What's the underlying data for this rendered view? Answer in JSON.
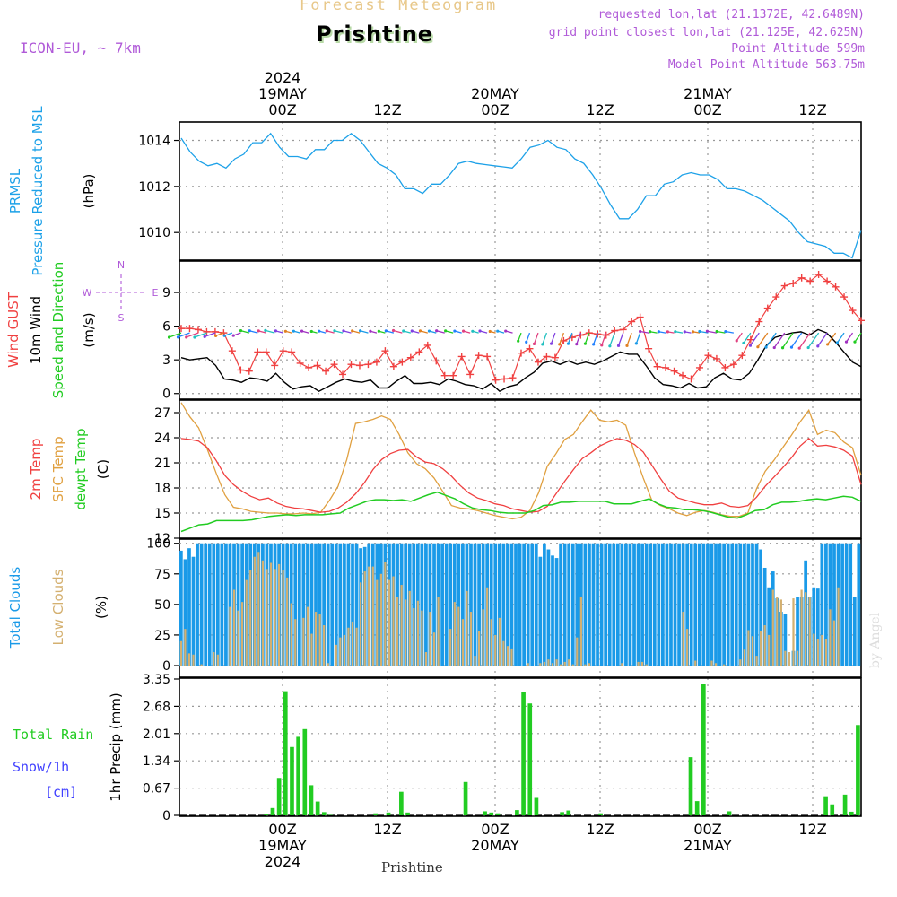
{
  "header": {
    "title": "Forecast Meteogram",
    "city": "Prishtine",
    "model": "ICON-EU, ~ 7km",
    "requested": "requested lon,lat (21.1372E, 42.6489N)",
    "grid": "grid point closest lon,lat (21.125E, 42.625N)",
    "point_alt": "Point Altitude 599m",
    "model_alt": "Model Point Altitude 563.75m",
    "bottom_name": "Prishtine",
    "watermark": "by Angel"
  },
  "colors": {
    "pressure": "#1da1e8",
    "gust": "#f04040",
    "wind": "#000000",
    "t2m": "#f04040",
    "sfc": "#e0a040",
    "dewpt": "#22cc22",
    "total_clouds": "#1a9ae8",
    "low_clouds": "#d4b070",
    "rain": "#22cc22",
    "snow": "#4040ff",
    "purple": "#b05ad8"
  },
  "chart_data": [
    {
      "id": "pressure",
      "type": "line",
      "ylabel_lines": [
        "PRMSL",
        "Pressure Reduced to MSL"
      ],
      "unit": "(hPa)",
      "ylim": [
        1008.8,
        1014.8
      ],
      "yticks": [
        1010,
        1012,
        1014
      ],
      "series": [
        {
          "name": "PRMSL",
          "values": [
            1014.1,
            1013.5,
            1013.1,
            1012.9,
            1013.0,
            1012.8,
            1013.2,
            1013.4,
            1013.9,
            1013.9,
            1014.3,
            1013.7,
            1013.3,
            1013.3,
            1013.2,
            1013.6,
            1013.6,
            1014.0,
            1014.0,
            1014.3,
            1014.0,
            1013.5,
            1013.0,
            1012.8,
            1012.5,
            1011.9,
            1011.9,
            1011.7,
            1012.1,
            1012.1,
            1012.5,
            1013.0,
            1013.1,
            1013.0,
            1012.95,
            1012.9,
            1012.85,
            1012.8,
            1013.2,
            1013.7,
            1013.8,
            1014.0,
            1013.7,
            1013.6,
            1013.2,
            1013.0,
            1012.5,
            1011.9,
            1011.2,
            1010.6,
            1010.6,
            1011.0,
            1011.6,
            1011.6,
            1012.1,
            1012.2,
            1012.5,
            1012.6,
            1012.5,
            1012.5,
            1012.3,
            1011.9,
            1011.9,
            1011.8,
            1011.6,
            1011.4,
            1011.1,
            1010.8,
            1010.5,
            1010.0,
            1009.6,
            1009.5,
            1009.4,
            1009.1,
            1009.1,
            1008.9,
            1010.1
          ]
        }
      ]
    },
    {
      "id": "wind",
      "type": "line",
      "ylabel_lines": [
        "Wind GUST",
        "10m Wind",
        "Speed and Direction"
      ],
      "unit": "(m/s)",
      "ylim": [
        -0.5,
        11.8
      ],
      "yticks": [
        0,
        3,
        6,
        9
      ],
      "compass": {
        "n": "N",
        "s": "S",
        "w": "W",
        "e": "E"
      },
      "series": [
        {
          "name": "Wind GUST",
          "values": [
            5.8,
            5.8,
            5.7,
            5.5,
            5.5,
            5.4,
            3.8,
            2.1,
            2.0,
            3.7,
            3.7,
            2.5,
            3.8,
            3.7,
            2.7,
            2.3,
            2.5,
            2.0,
            2.6,
            1.7,
            2.6,
            2.5,
            2.6,
            2.8,
            3.8,
            2.4,
            2.8,
            3.2,
            3.7,
            4.3,
            2.9,
            1.6,
            1.6,
            3.3,
            1.7,
            3.4,
            3.3,
            1.2,
            1.3,
            1.4,
            3.6,
            4.0,
            2.8,
            3.3,
            3.2,
            4.7,
            5.0,
            5.2,
            5.4,
            5.3,
            5.2,
            5.6,
            5.7,
            6.4,
            6.8,
            4.0,
            2.4,
            2.3,
            2.0,
            1.6,
            1.3,
            2.3,
            3.4,
            3.1,
            2.3,
            2.6,
            3.4,
            4.8,
            6.4,
            7.6,
            8.6,
            9.6,
            9.8,
            10.3,
            10.0,
            10.6,
            10.0,
            9.5,
            8.6,
            7.4,
            6.5
          ]
        },
        {
          "name": "10m Wind",
          "values": [
            3.2,
            3.0,
            3.1,
            3.2,
            2.5,
            1.3,
            1.2,
            1.0,
            1.4,
            1.3,
            1.1,
            1.8,
            1.0,
            0.4,
            0.6,
            0.7,
            0.2,
            0.6,
            1.0,
            1.3,
            1.1,
            1.0,
            1.2,
            0.5,
            0.5,
            1.1,
            1.6,
            0.9,
            0.9,
            1.0,
            0.8,
            1.3,
            1.1,
            0.8,
            0.7,
            0.4,
            0.9,
            0.2,
            0.6,
            0.8,
            1.4,
            1.9,
            2.7,
            2.9,
            2.6,
            2.9,
            2.6,
            2.8,
            2.6,
            2.9,
            3.3,
            3.7,
            3.5,
            3.5,
            2.5,
            1.4,
            0.8,
            0.7,
            0.5,
            0.9,
            0.5,
            0.6,
            1.4,
            1.8,
            1.3,
            1.2,
            1.8,
            3.0,
            4.3,
            5.0,
            5.2,
            5.4,
            5.5,
            5.2,
            5.7,
            5.4,
            4.6,
            3.7,
            2.8,
            2.4
          ]
        }
      ]
    },
    {
      "id": "temperature",
      "type": "line",
      "ylabel_lines": [
        "2m Temp",
        "SFC Temp",
        "dewpt Temp"
      ],
      "unit": "(C)",
      "ylim": [
        12,
        28.5
      ],
      "yticks": [
        12,
        15,
        18,
        21,
        24,
        27
      ],
      "series": [
        {
          "name": "2m Temp",
          "values": [
            23.9,
            23.8,
            23.6,
            22.8,
            21.3,
            19.5,
            18.4,
            17.6,
            17.0,
            16.6,
            16.8,
            16.2,
            15.8,
            15.6,
            15.5,
            15.3,
            15.1,
            15.2,
            15.6,
            16.3,
            17.3,
            18.6,
            20.2,
            21.4,
            22.1,
            22.5,
            22.6,
            21.7,
            21.1,
            20.9,
            20.3,
            19.4,
            18.3,
            17.4,
            16.8,
            16.5,
            16.1,
            15.9,
            15.5,
            15.3,
            15.1,
            15.2,
            15.8,
            17.3,
            18.8,
            20.2,
            21.5,
            22.2,
            23.0,
            23.5,
            23.9,
            23.7,
            23.2,
            22.3,
            20.7,
            19.1,
            17.6,
            16.8,
            16.5,
            16.2,
            16.0,
            16.0,
            16.2,
            15.8,
            15.7,
            15.9,
            16.9,
            18.2,
            19.3,
            20.4,
            21.6,
            23.0,
            23.9,
            23.0,
            23.1,
            22.9,
            22.5,
            21.8,
            18.4
          ]
        },
        {
          "name": "SFC Temp",
          "values": [
            28.2,
            26.5,
            25.2,
            22.6,
            19.8,
            17.2,
            15.7,
            15.5,
            15.2,
            15.1,
            15.0,
            15.0,
            14.9,
            14.9,
            15.0,
            14.9,
            15.1,
            16.5,
            18.2,
            21.4,
            25.7,
            25.9,
            26.2,
            26.6,
            26.2,
            24.4,
            22.2,
            20.9,
            20.3,
            19.2,
            17.6,
            15.9,
            15.6,
            15.5,
            15.3,
            15.0,
            14.7,
            14.5,
            14.3,
            14.5,
            15.3,
            17.4,
            20.6,
            22.1,
            23.8,
            24.4,
            25.9,
            27.3,
            26.1,
            25.9,
            26.1,
            25.5,
            22.2,
            19.2,
            16.5,
            15.9,
            15.5,
            15.0,
            14.7,
            15.1,
            15.3,
            15.1,
            14.8,
            14.6,
            14.6,
            15.0,
            17.9,
            20.0,
            21.3,
            22.8,
            24.3,
            25.9,
            27.3,
            24.4,
            24.9,
            24.6,
            23.5,
            22.8,
            19.5
          ]
        },
        {
          "name": "dewpt Temp",
          "values": [
            12.8,
            13.2,
            13.6,
            13.7,
            14.1,
            14.1,
            14.1,
            14.1,
            14.2,
            14.4,
            14.6,
            14.7,
            14.8,
            14.7,
            14.8,
            14.8,
            14.8,
            14.9,
            15.0,
            15.6,
            16.0,
            16.4,
            16.6,
            16.6,
            16.5,
            16.6,
            16.4,
            16.8,
            17.2,
            17.5,
            17.1,
            16.7,
            16.1,
            15.6,
            15.4,
            15.3,
            15.1,
            15.0,
            15.0,
            15.0,
            15.3,
            15.9,
            16.0,
            16.3,
            16.3,
            16.4,
            16.4,
            16.4,
            16.4,
            16.1,
            16.1,
            16.1,
            16.4,
            16.7,
            16.1,
            15.7,
            15.6,
            15.4,
            15.4,
            15.3,
            15.1,
            14.8,
            14.5,
            14.4,
            14.8,
            15.3,
            15.4,
            16.0,
            16.3,
            16.3,
            16.4,
            16.6,
            16.7,
            16.6,
            16.8,
            17.0,
            16.9,
            16.4
          ]
        }
      ]
    },
    {
      "id": "clouds",
      "type": "bar",
      "ylabel_left": "Total Clouds",
      "ylabel_right": "Low Clouds",
      "unit": "(%)",
      "ylim": [
        0,
        102
      ],
      "yticks": [
        0,
        25,
        50,
        75,
        100
      ],
      "series": [
        {
          "name": "Total Clouds",
          "values": [
            94,
            87,
            96,
            89,
            100,
            100,
            100,
            100,
            100,
            100,
            100,
            100,
            100,
            100,
            100,
            100,
            100,
            100,
            100,
            100,
            100,
            100,
            100,
            100,
            100,
            100,
            100,
            100,
            100,
            100,
            100,
            100,
            100,
            100,
            100,
            100,
            100,
            100,
            100,
            100,
            100,
            100,
            100,
            100,
            96,
            97,
            100,
            100,
            100,
            100,
            100,
            100,
            100,
            100,
            100,
            100,
            100,
            100,
            100,
            100,
            100,
            100,
            100,
            100,
            100,
            100,
            100,
            100,
            100,
            100,
            100,
            100,
            100,
            100,
            100,
            100,
            100,
            100,
            100,
            100,
            100,
            100,
            100,
            100,
            100,
            100,
            100,
            100,
            89,
            100,
            95,
            90,
            88,
            100,
            100,
            100,
            100,
            100,
            100,
            100,
            100,
            100,
            100,
            100,
            100,
            100,
            100,
            100,
            100,
            100,
            100,
            100,
            100,
            100,
            100,
            100,
            100,
            100,
            100,
            100,
            100,
            100,
            100,
            100,
            100,
            100,
            100,
            100,
            100,
            100,
            100,
            100,
            100,
            100,
            100,
            100,
            100,
            100,
            100,
            100,
            100,
            100,
            95,
            80,
            64,
            77,
            55,
            44,
            42,
            0,
            12,
            56,
            56,
            86,
            56,
            64,
            63,
            100,
            100,
            100,
            100,
            100,
            100,
            100,
            100,
            56,
            100
          ]
        },
        {
          "name": "Low Clouds",
          "values": [
            20,
            30,
            10,
            9,
            0,
            1,
            0,
            0,
            11,
            9,
            0,
            0,
            48,
            62,
            45,
            52,
            70,
            78,
            89,
            93,
            86,
            79,
            84,
            79,
            83,
            78,
            72,
            51,
            38,
            0,
            39,
            48,
            26,
            44,
            42,
            33,
            2,
            0,
            17,
            23,
            25,
            31,
            36,
            31,
            68,
            77,
            81,
            81,
            70,
            75,
            85,
            70,
            73,
            56,
            66,
            54,
            61,
            47,
            53,
            45,
            11,
            44,
            27,
            56,
            0,
            0,
            30,
            52,
            48,
            38,
            61,
            44,
            8,
            28,
            46,
            64,
            38,
            25,
            39,
            20,
            16,
            14,
            0,
            0,
            0,
            2,
            0,
            0,
            2,
            3,
            5,
            2,
            5,
            1,
            3,
            5,
            1,
            23,
            56,
            1,
            2,
            0,
            0,
            0,
            0,
            0,
            0,
            0,
            2,
            0,
            0,
            0,
            3,
            3,
            1,
            0,
            0,
            0,
            0,
            0,
            0,
            0,
            0,
            44,
            30,
            0,
            4,
            0,
            0,
            0,
            4,
            2,
            0,
            1,
            0,
            0,
            0,
            5,
            13,
            29,
            24,
            8,
            28,
            33,
            25,
            62,
            56,
            54,
            12,
            11,
            55,
            12,
            62,
            60,
            56,
            26,
            22,
            25,
            22,
            46,
            37,
            64
          ]
        }
      ]
    },
    {
      "id": "precip",
      "type": "bar",
      "ylabel_lines": [
        "Total   Rain",
        "Snow/1h",
        "[cm]"
      ],
      "unit": "1hr Precip (mm)",
      "ylim": [
        0,
        3.35
      ],
      "yticks": [
        "0",
        "0.67",
        "1.34",
        "2.01",
        "2.68",
        "3.35"
      ],
      "series": [
        {
          "name": "Total Rain",
          "values": [
            0,
            0,
            0,
            0,
            0,
            0,
            0,
            0,
            0,
            0,
            0,
            0,
            0,
            0.03,
            0.18,
            0.92,
            3.05,
            1.68,
            1.93,
            2.12,
            0.74,
            0.34,
            0.08,
            0.01,
            0,
            0,
            0,
            0,
            0,
            0,
            0.05,
            0,
            0.07,
            0,
            0.58,
            0.07,
            0,
            0,
            0,
            0,
            0,
            0,
            0,
            0,
            0.82,
            0,
            0,
            0.1,
            0.07,
            0.05,
            0,
            0,
            0.13,
            3.02,
            2.75,
            0.43,
            0,
            0,
            0,
            0.08,
            0.12,
            0,
            0,
            0,
            0,
            0.05,
            0,
            0,
            0,
            0,
            0,
            0,
            0,
            0,
            0,
            0,
            0,
            0,
            0,
            1.43,
            0.35,
            3.22,
            0,
            0,
            0,
            0.1,
            0,
            0,
            0,
            0,
            0,
            0,
            0,
            0,
            0,
            0,
            0,
            0,
            0,
            0,
            0.47,
            0.27,
            0,
            0.51,
            0.09,
            2.22
          ]
        }
      ]
    }
  ],
  "time_axis": {
    "top_labels": [
      {
        "line1": "2024",
        "line2": "19MAY",
        "line3": "00Z"
      },
      {
        "line1": "",
        "line2": "",
        "line3": "12Z"
      },
      {
        "line1": "",
        "line2": "20MAY",
        "line3": "00Z"
      },
      {
        "line1": "",
        "line2": "",
        "line3": "12Z"
      },
      {
        "line1": "",
        "line2": "21MAY",
        "line3": "00Z"
      },
      {
        "line1": "",
        "line2": "",
        "line3": "12Z"
      }
    ],
    "bottom_labels": [
      {
        "line1": "00Z",
        "line2": "19MAY",
        "line3": "2024"
      },
      {
        "line1": "12Z",
        "line2": "",
        "line3": ""
      },
      {
        "line1": "00Z",
        "line2": "20MAY",
        "line3": ""
      },
      {
        "line1": "12Z",
        "line2": "",
        "line3": ""
      },
      {
        "line1": "00Z",
        "line2": "21MAY",
        "line3": ""
      },
      {
        "line1": "12Z",
        "line2": "",
        "line3": ""
      }
    ]
  }
}
